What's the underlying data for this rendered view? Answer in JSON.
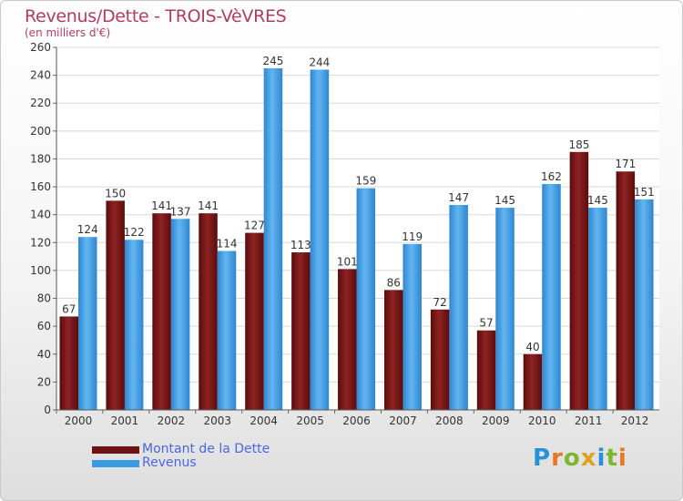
{
  "header": {
    "title": "Revenus/Dette - TROIS-VèVRES",
    "subtitle": "(en milliers d'€)"
  },
  "chart_data": {
    "type": "bar",
    "categories": [
      "2000",
      "2001",
      "2002",
      "2003",
      "2004",
      "2005",
      "2006",
      "2007",
      "2008",
      "2009",
      "2010",
      "2011",
      "2012"
    ],
    "series": [
      {
        "name": "Montant de la Dette",
        "color": "#6e1414",
        "values": [
          67,
          150,
          141,
          141,
          127,
          113,
          101,
          86,
          72,
          57,
          40,
          185,
          171
        ]
      },
      {
        "name": "Revenus",
        "color": "#3b9be0",
        "values": [
          124,
          122,
          137,
          114,
          245,
          244,
          159,
          119,
          147,
          145,
          162,
          145,
          151
        ]
      }
    ],
    "ylim": [
      0,
      260
    ],
    "yticks": [
      0,
      20,
      40,
      60,
      80,
      100,
      120,
      140,
      160,
      180,
      200,
      220,
      240,
      260
    ],
    "grid": true,
    "legend_position": "bottom-left"
  },
  "logo": {
    "letters": [
      "P",
      "r",
      "o",
      "x",
      "i",
      "t",
      "i"
    ],
    "colors": [
      "#2a8fd6",
      "#e8771e",
      "#7cb82f",
      "#e0a022",
      "#2a8fd6",
      "#7cb82f",
      "#e8771e"
    ]
  }
}
